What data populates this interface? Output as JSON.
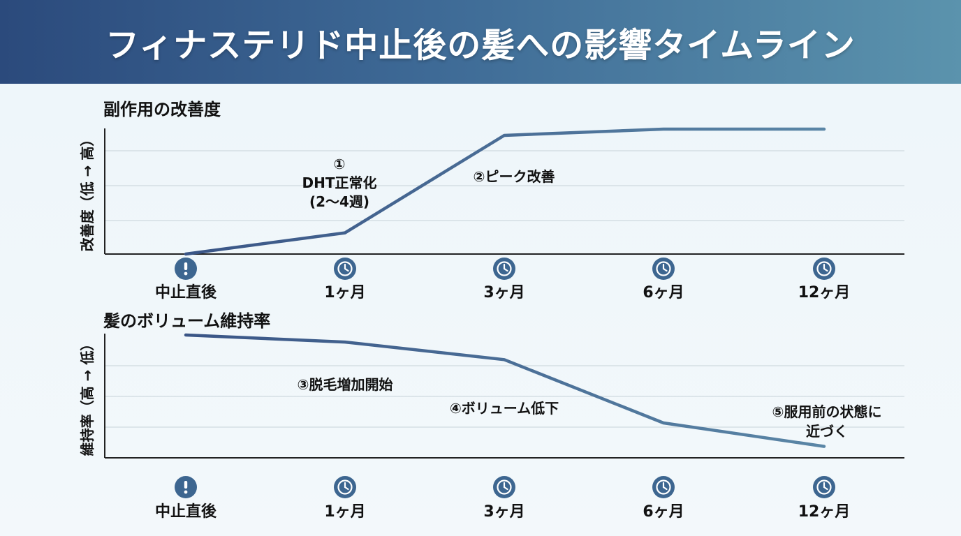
{
  "title": "フィナステリド中止後の髪への影響タイムライン",
  "colors": {
    "banner_start": "#2b4a7c",
    "banner_end": "#5b93ad",
    "line_start": "#3a5586",
    "line_end": "#5a86a6",
    "icon_fill": "#3d6690",
    "grid": "#cfd9df",
    "axis": "#222222"
  },
  "chart_data": [
    {
      "type": "line",
      "title": "副作用の改善度",
      "ylabel": "改善度（低 → 高）",
      "categories": [
        "中止直後",
        "1ヶ月",
        "3ヶ月",
        "6ヶ月",
        "12ヶ月"
      ],
      "category_icons": [
        "exclamation-icon",
        "clock-icon",
        "clock-icon",
        "clock-icon",
        "clock-icon"
      ],
      "series": [
        {
          "values": [
            0,
            17,
            95,
            100,
            100
          ]
        }
      ],
      "ylim": [
        0,
        100
      ],
      "grid": true,
      "annotations": [
        {
          "lines": [
            "①",
            "DHT正常化",
            "(2〜4週)"
          ]
        },
        {
          "lines": [
            "②ピーク改善"
          ]
        }
      ]
    },
    {
      "type": "line",
      "title": "髪のボリューム維持率",
      "ylabel": "維持率（高 → 低）",
      "categories": [
        "中止直後",
        "1ヶ月",
        "3ヶ月",
        "6ヶ月",
        "12ヶ月"
      ],
      "category_icons": [
        "exclamation-icon",
        "clock-icon",
        "clock-icon",
        "clock-icon",
        "clock-icon"
      ],
      "series": [
        {
          "values": [
            100,
            94,
            79,
            25,
            5
          ]
        }
      ],
      "ylim": [
        0,
        100
      ],
      "grid": true,
      "annotations": [
        {
          "lines": [
            "③脱毛増加開始"
          ]
        },
        {
          "lines": [
            "④ボリューム低下"
          ]
        },
        {
          "lines": [
            "⑤服用前の状態に",
            "近づく"
          ]
        }
      ]
    }
  ]
}
